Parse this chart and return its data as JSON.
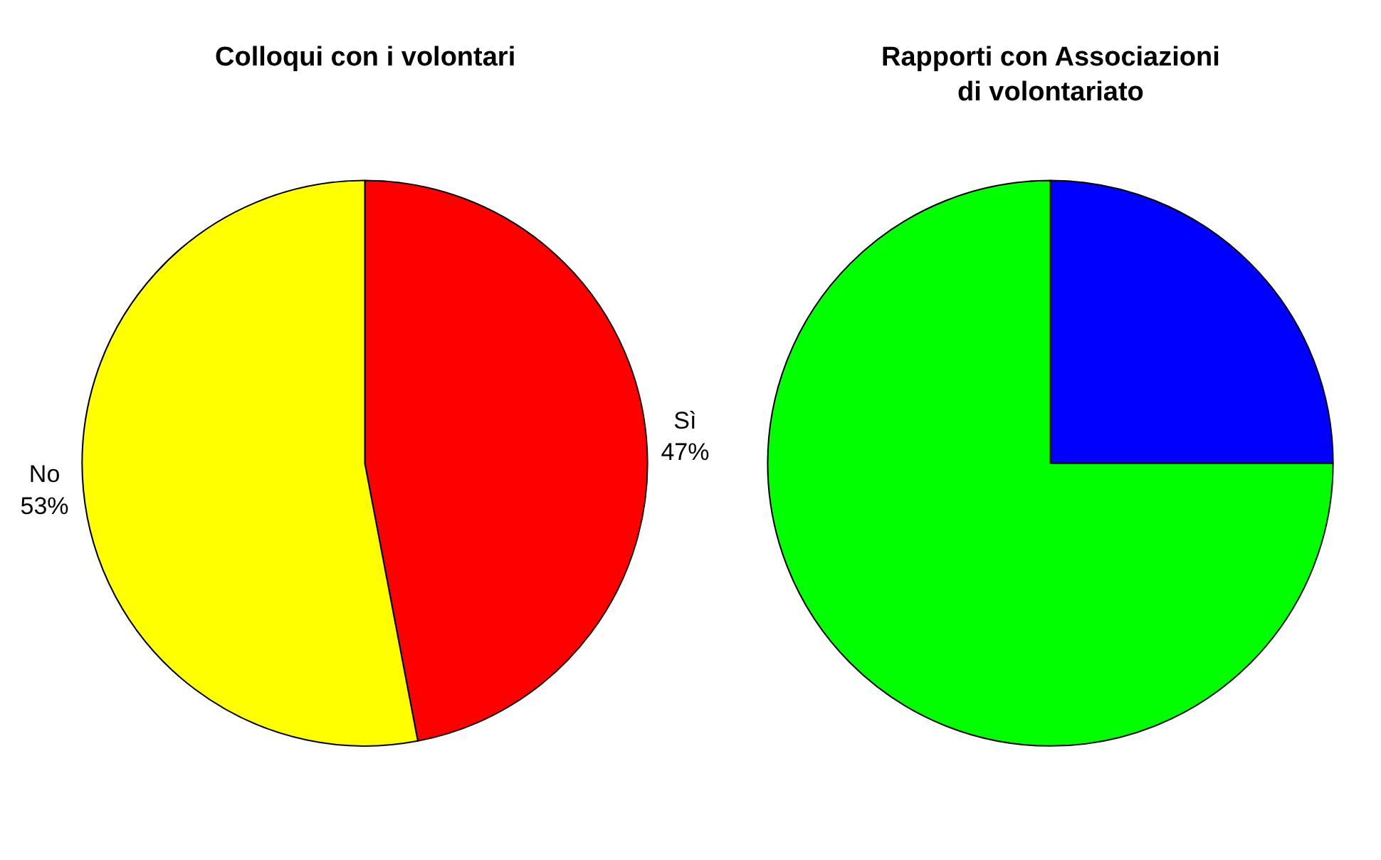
{
  "chart_data": [
    {
      "type": "pie",
      "title": "Colloqui con i volontari",
      "categories": [
        "Sì",
        "No"
      ],
      "values": [
        47,
        53
      ],
      "value_labels": [
        "47%",
        "53%"
      ],
      "colors": [
        "#ff0000",
        "#ffff00"
      ],
      "legend": false
    },
    {
      "type": "pie",
      "title": "Rapporti con Associazioni\ndi volontariato",
      "categories": [
        null,
        null
      ],
      "values": [
        25,
        75
      ],
      "colors": [
        "#0000ff",
        "#00ff00"
      ],
      "legend": false
    }
  ]
}
